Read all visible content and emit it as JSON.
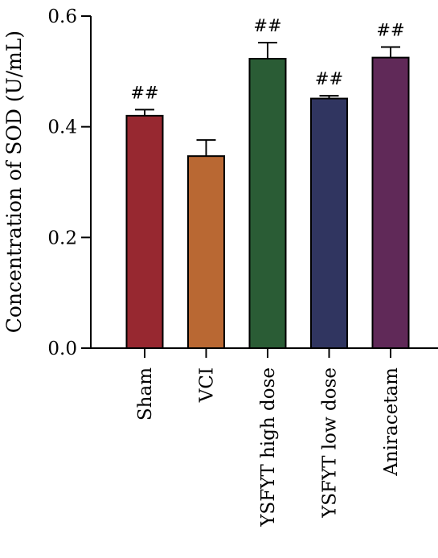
{
  "chart_data": {
    "type": "bar",
    "ylabel": "Concentration of SOD (U/mL)",
    "ylim": [
      0,
      0.6
    ],
    "yticks": [
      0.0,
      0.2,
      0.4,
      0.6
    ],
    "ytick_labels": [
      "0.0",
      "0.2",
      "0.4",
      "0.6"
    ],
    "categories": [
      "Sham",
      "VCI",
      "YSFYT high dose",
      "YSFYT low dose",
      "Aniracetam"
    ],
    "values": [
      0.42,
      0.347,
      0.523,
      0.451,
      0.525
    ],
    "errors": [
      0.011,
      0.029,
      0.029,
      0.005,
      0.019
    ],
    "annotations": [
      "##",
      "",
      "##",
      "##",
      "##"
    ],
    "colors": [
      "#972830",
      "#B96833",
      "#2A5C35",
      "#303560",
      "#602958"
    ],
    "grid": false,
    "legend": "none"
  }
}
